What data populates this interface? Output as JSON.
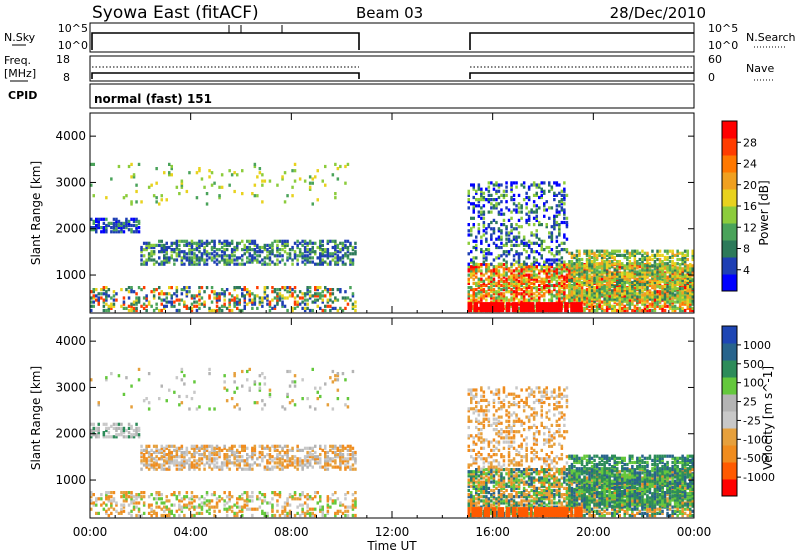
{
  "header": {
    "station": "Syowa East (fitACF)",
    "beam": "Beam 03",
    "date": "28/Dec/2010"
  },
  "noise_panel": {
    "left_label": "N.Sky",
    "right_label": "N.Search",
    "left_ticks": [
      "10^5",
      "10^0"
    ],
    "right_ticks": [
      "10^5",
      "10^0"
    ]
  },
  "freq_panel": {
    "left_label_1": "Freq.",
    "left_label_2": "[MHz]",
    "right_label": "Nave",
    "left_ticks": [
      "18",
      "8"
    ],
    "right_ticks": [
      "60",
      "0"
    ]
  },
  "cpid_panel": {
    "label": "CPID",
    "mode": "normal (fast) 151"
  },
  "x_axis": {
    "label": "Time UT",
    "ticks": [
      "00:00",
      "04:00",
      "08:00",
      "12:00",
      "16:00",
      "20:00",
      "00:00"
    ]
  },
  "colors": {
    "power_scale": [
      "#0000ff",
      "#1e3fb4",
      "#2d7a5a",
      "#4aa35a",
      "#8ccc3c",
      "#e8d21e",
      "#f0a020",
      "#ff7800",
      "#ff3c00",
      "#ff0000"
    ],
    "velocity_scale": [
      "#ff0000",
      "#ff5a00",
      "#f08c1e",
      "#e6a03c",
      "#c8c8c8",
      "#b4b4b4",
      "#64c83c",
      "#2d8c5a",
      "#28648c",
      "#1e46b4"
    ]
  },
  "chart_data": [
    {
      "type": "heatmap",
      "name": "power",
      "xlabel": "Time UT",
      "ylabel": "Slant Range [km]",
      "xlim": [
        0,
        24
      ],
      "ylim": [
        180,
        4500
      ],
      "yticks": [
        "1000",
        "2000",
        "3000",
        "4000"
      ],
      "data_gap_hours": [
        10.6,
        15.0
      ],
      "colorbar": {
        "label": "Power [dB]",
        "min": 0,
        "max": 32,
        "ticks": [
          "4",
          "8",
          "12",
          "16",
          "20",
          "24",
          "28"
        ]
      }
    },
    {
      "type": "heatmap",
      "name": "velocity",
      "xlabel": "Time UT",
      "ylabel": "Slant Range [km]",
      "xlim": [
        0,
        24
      ],
      "ylim": [
        180,
        4500
      ],
      "yticks": [
        "1000",
        "2000",
        "3000",
        "4000"
      ],
      "data_gap_hours": [
        10.6,
        15.0
      ],
      "colorbar": {
        "label": "Velocity [m s^-1]",
        "ticks": [
          "1000",
          "500",
          "100",
          "25",
          "-25",
          "-100",
          "-500",
          "-1000"
        ]
      }
    }
  ]
}
